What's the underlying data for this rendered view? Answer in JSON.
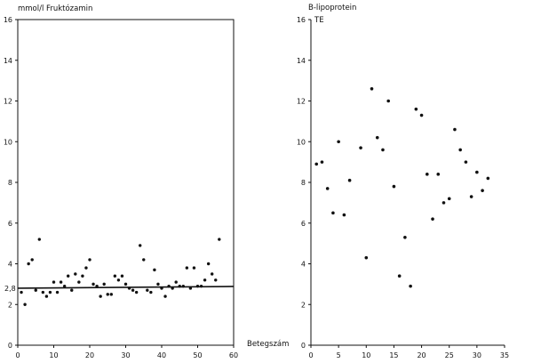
{
  "chart_data": [
    {
      "type": "scatter",
      "title": "mmol/l Fruktózamin",
      "xlabel": "Betegszám",
      "ylabel": "",
      "xlim": [
        0,
        60
      ],
      "ylim": [
        0,
        16
      ],
      "x_ticks": [
        "0",
        "10",
        "20",
        "30",
        "40",
        "50",
        "60"
      ],
      "y_ticks": [
        "0",
        "2",
        "4",
        "6",
        "8",
        "10",
        "12",
        "14",
        "16"
      ],
      "reference_line": {
        "label": "2,8",
        "y": 2.8
      },
      "series": [
        {
          "x": [
            1,
            2,
            3,
            4,
            5,
            6,
            7,
            8,
            9,
            10,
            11,
            12,
            13,
            14,
            15,
            16,
            17,
            18,
            19,
            20,
            21,
            22,
            23,
            24,
            25,
            26,
            27,
            28,
            29,
            30,
            31,
            32,
            33,
            34,
            35,
            36,
            37,
            38,
            39,
            40,
            41,
            42,
            43,
            44,
            45,
            46,
            47,
            48,
            49,
            50,
            51,
            52,
            53,
            54,
            55,
            56
          ],
          "y": [
            2.6,
            2.0,
            4.0,
            4.2,
            2.7,
            5.2,
            2.6,
            2.4,
            2.6,
            3.1,
            2.6,
            3.1,
            2.9,
            3.4,
            2.7,
            3.5,
            3.1,
            3.4,
            3.8,
            4.2,
            3.0,
            2.9,
            2.4,
            3.0,
            2.5,
            2.5,
            3.4,
            3.2,
            3.4,
            3.0,
            2.8,
            2.7,
            2.6,
            4.9,
            4.2,
            2.7,
            2.6,
            3.7,
            3.0,
            2.8,
            2.4,
            2.9,
            2.8,
            3.1,
            2.9,
            2.9,
            3.8,
            2.8,
            3.8,
            2.9,
            2.9,
            3.2,
            4.0,
            3.5,
            3.2,
            5.2
          ]
        }
      ]
    },
    {
      "type": "scatter",
      "title": "B-lipoprotein",
      "subtitle": "TE",
      "xlabel": "",
      "ylabel": "",
      "xlim": [
        0,
        35
      ],
      "ylim": [
        0,
        16
      ],
      "x_ticks": [
        "0",
        "5",
        "10",
        "15",
        "20",
        "25",
        "30",
        "35"
      ],
      "y_ticks": [
        "0",
        "2",
        "4",
        "6",
        "8",
        "10",
        "12",
        "14",
        "16"
      ],
      "series": [
        {
          "x": [
            1,
            2,
            3,
            4,
            5,
            6,
            7,
            9,
            10,
            11,
            12,
            13,
            14,
            15,
            16,
            17,
            18,
            19,
            20,
            21,
            22,
            23,
            24,
            25,
            26,
            27,
            28,
            29,
            30,
            31,
            32
          ],
          "y": [
            8.9,
            9.0,
            7.7,
            6.5,
            10.0,
            6.4,
            8.1,
            9.7,
            4.3,
            12.6,
            10.2,
            9.6,
            12.0,
            7.8,
            3.4,
            5.3,
            2.9,
            11.6,
            11.3,
            8.4,
            6.2,
            8.4,
            7.0,
            7.2,
            10.6,
            9.6,
            9.0,
            7.3,
            8.5,
            7.6,
            8.2
          ]
        }
      ]
    }
  ]
}
